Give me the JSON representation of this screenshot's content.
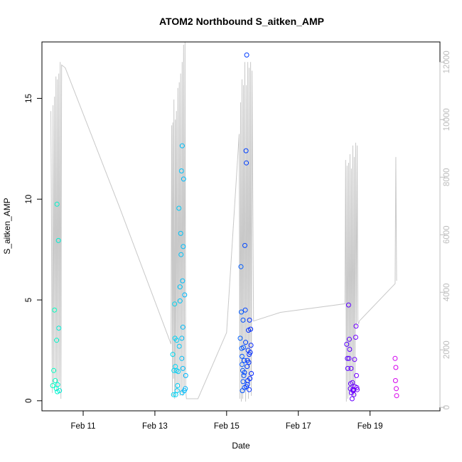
{
  "chart_data": {
    "type": "scatter",
    "title": "ATOM2 Northbound S_aitken_AMP",
    "xlabel": "Date",
    "ylabel": "S_aitken_AMP",
    "x_unit": "date",
    "xlim": [
      "Feb 9.85",
      "Feb 20.95"
    ],
    "ylim": [
      -0.5,
      17.8
    ],
    "y2lim": [
      -120,
      12700
    ],
    "x_ticks": [
      11,
      13,
      15,
      17,
      19
    ],
    "x_tick_labels": [
      "Feb 11",
      "Feb 13",
      "Feb 15",
      "Feb 17",
      "Feb 19"
    ],
    "y_ticks": [
      0,
      5,
      10,
      15
    ],
    "y_tick_labels": [
      "0",
      "5",
      "10",
      "15"
    ],
    "y2_ticks": [
      0,
      2000,
      4000,
      6000,
      8000,
      10000,
      12000
    ],
    "y2_tick_labels": [
      "0",
      "2000",
      "4000",
      "6000",
      "8000",
      "10000",
      "12000"
    ],
    "grid": false,
    "legend": "none",
    "colors": {
      "line": "#c8c8c8",
      "axis": "#000000",
      "right_axis": "#bdbdbd"
    },
    "series": [
      {
        "role": "points",
        "axis": "left",
        "points": [
          {
            "day": 10.15,
            "y": 0.75,
            "color": "#00ffc0"
          },
          {
            "day": 10.18,
            "y": 1.5,
            "color": "#00ffc0"
          },
          {
            "day": 10.2,
            "y": 4.5,
            "color": "#00ffc0"
          },
          {
            "day": 10.22,
            "y": 1.0,
            "color": "#00fcc4"
          },
          {
            "day": 10.25,
            "y": 0.6,
            "color": "#00f8c8"
          },
          {
            "day": 10.26,
            "y": 3.0,
            "color": "#00f6ca"
          },
          {
            "day": 10.27,
            "y": 9.75,
            "color": "#00f4cc"
          },
          {
            "day": 10.28,
            "y": 0.45,
            "color": "#00f2ce"
          },
          {
            "day": 10.29,
            "y": 0.8,
            "color": "#00f0d0"
          },
          {
            "day": 10.31,
            "y": 7.95,
            "color": "#00eed2"
          },
          {
            "day": 10.32,
            "y": 3.6,
            "color": "#00ecd4"
          },
          {
            "day": 10.34,
            "y": 0.5,
            "color": "#00ead6"
          },
          {
            "day": 13.5,
            "y": 2.3,
            "color": "#00d8ee"
          },
          {
            "day": 13.52,
            "y": 0.3,
            "color": "#00d6ef"
          },
          {
            "day": 13.53,
            "y": 1.5,
            "color": "#00d5f0"
          },
          {
            "day": 13.55,
            "y": 4.8,
            "color": "#00d4f0"
          },
          {
            "day": 13.56,
            "y": 3.1,
            "color": "#00d3f1"
          },
          {
            "day": 13.57,
            "y": 1.7,
            "color": "#00d2f2"
          },
          {
            "day": 13.58,
            "y": 0.3,
            "color": "#00d1f2"
          },
          {
            "day": 13.6,
            "y": 1.5,
            "color": "#00cff3"
          },
          {
            "day": 13.61,
            "y": 3.0,
            "color": "#00cef3"
          },
          {
            "day": 13.62,
            "y": 0.5,
            "color": "#00cdf4"
          },
          {
            "day": 13.65,
            "y": 1.45,
            "color": "#00caf5"
          },
          {
            "day": 13.67,
            "y": 9.55,
            "color": "#00c8f6"
          },
          {
            "day": 13.68,
            "y": 2.7,
            "color": "#00c7f6"
          },
          {
            "day": 13.7,
            "y": 5.65,
            "color": "#00c5f7"
          },
          {
            "day": 13.72,
            "y": 8.3,
            "color": "#00c3f8"
          },
          {
            "day": 13.73,
            "y": 7.25,
            "color": "#00c2f8"
          },
          {
            "day": 13.74,
            "y": 11.4,
            "color": "#00c1f9"
          },
          {
            "day": 13.75,
            "y": 3.1,
            "color": "#00c0f9"
          },
          {
            "day": 13.76,
            "y": 12.65,
            "color": "#00bff9"
          },
          {
            "day": 13.77,
            "y": 5.95,
            "color": "#00befa"
          },
          {
            "day": 13.78,
            "y": 3.65,
            "color": "#00bdfa"
          },
          {
            "day": 13.79,
            "y": 7.65,
            "color": "#00bcfa"
          },
          {
            "day": 13.8,
            "y": 11.0,
            "color": "#00bbfb"
          },
          {
            "day": 13.82,
            "y": 0.5,
            "color": "#00b9fb"
          },
          {
            "day": 13.83,
            "y": 5.25,
            "color": "#00b8fc"
          },
          {
            "day": 13.85,
            "y": 0.6,
            "color": "#00b6fc"
          },
          {
            "day": 13.86,
            "y": 1.25,
            "color": "#00b5fc"
          },
          {
            "day": 13.75,
            "y": 2.1,
            "color": "#00c0f9"
          },
          {
            "day": 13.7,
            "y": 4.95,
            "color": "#00c5f7"
          },
          {
            "day": 13.63,
            "y": 0.75,
            "color": "#00ccf4"
          },
          {
            "day": 13.78,
            "y": 1.6,
            "color": "#00bdfa"
          },
          {
            "day": 13.76,
            "y": 0.4,
            "color": "#00bff9"
          },
          {
            "day": 15.38,
            "y": 3.1,
            "color": "#0060ff"
          },
          {
            "day": 15.4,
            "y": 6.65,
            "color": "#005cff"
          },
          {
            "day": 15.41,
            "y": 4.4,
            "color": "#005aff"
          },
          {
            "day": 15.42,
            "y": 2.6,
            "color": "#0058ff"
          },
          {
            "day": 15.43,
            "y": 1.8,
            "color": "#0056ff"
          },
          {
            "day": 15.44,
            "y": 0.5,
            "color": "#0054ff"
          },
          {
            "day": 15.45,
            "y": 1.5,
            "color": "#0052ff"
          },
          {
            "day": 15.46,
            "y": 4.0,
            "color": "#0050ff"
          },
          {
            "day": 15.47,
            "y": 2.65,
            "color": "#004eff"
          },
          {
            "day": 15.48,
            "y": 1.25,
            "color": "#004cff"
          },
          {
            "day": 15.49,
            "y": 2.0,
            "color": "#004aff"
          },
          {
            "day": 15.5,
            "y": 0.65,
            "color": "#0048ff"
          },
          {
            "day": 15.51,
            "y": 7.7,
            "color": "#0046ff"
          },
          {
            "day": 15.52,
            "y": 4.5,
            "color": "#0044ff"
          },
          {
            "day": 15.53,
            "y": 2.9,
            "color": "#0042ff"
          },
          {
            "day": 15.54,
            "y": 12.4,
            "color": "#0040ff"
          },
          {
            "day": 15.55,
            "y": 11.8,
            "color": "#003eff"
          },
          {
            "day": 15.56,
            "y": 17.15,
            "color": "#003cff"
          },
          {
            "day": 15.57,
            "y": 1.7,
            "color": "#003aff"
          },
          {
            "day": 15.58,
            "y": 0.8,
            "color": "#0038ff"
          },
          {
            "day": 15.59,
            "y": 1.0,
            "color": "#0036ff"
          },
          {
            "day": 15.6,
            "y": 2.5,
            "color": "#0034ff"
          },
          {
            "day": 15.61,
            "y": 3.5,
            "color": "#0032ff"
          },
          {
            "day": 15.62,
            "y": 1.9,
            "color": "#0030ff"
          },
          {
            "day": 15.63,
            "y": 2.3,
            "color": "#002eff"
          },
          {
            "day": 15.64,
            "y": 4.0,
            "color": "#002cff"
          },
          {
            "day": 15.65,
            "y": 1.1,
            "color": "#002aff"
          },
          {
            "day": 15.66,
            "y": 2.4,
            "color": "#0028ff"
          },
          {
            "day": 15.67,
            "y": 3.55,
            "color": "#0026ff"
          },
          {
            "day": 15.68,
            "y": 2.75,
            "color": "#0024ff"
          },
          {
            "day": 15.69,
            "y": 1.35,
            "color": "#0022ff"
          },
          {
            "day": 15.58,
            "y": 2.0,
            "color": "#0038ff"
          },
          {
            "day": 15.5,
            "y": 1.4,
            "color": "#0048ff"
          },
          {
            "day": 15.46,
            "y": 0.95,
            "color": "#0050ff"
          },
          {
            "day": 15.43,
            "y": 2.2,
            "color": "#0056ff"
          },
          {
            "day": 15.55,
            "y": 0.7,
            "color": "#003eff"
          },
          {
            "day": 15.63,
            "y": 0.55,
            "color": "#002eff"
          },
          {
            "day": 18.35,
            "y": 2.8,
            "color": "#5800ff"
          },
          {
            "day": 18.37,
            "y": 2.1,
            "color": "#5a00ff"
          },
          {
            "day": 18.38,
            "y": 1.6,
            "color": "#5b00ff"
          },
          {
            "day": 18.4,
            "y": 4.75,
            "color": "#5d00ff"
          },
          {
            "day": 18.41,
            "y": 2.1,
            "color": "#5e00ff"
          },
          {
            "day": 18.42,
            "y": 3.05,
            "color": "#5f00ff"
          },
          {
            "day": 18.43,
            "y": 2.55,
            "color": "#6000ff"
          },
          {
            "day": 18.45,
            "y": 0.6,
            "color": "#6200ff"
          },
          {
            "day": 18.46,
            "y": 0.85,
            "color": "#6300ff"
          },
          {
            "day": 18.47,
            "y": 1.6,
            "color": "#6400ff"
          },
          {
            "day": 18.48,
            "y": 0.4,
            "color": "#6500ff"
          },
          {
            "day": 18.5,
            "y": 0.1,
            "color": "#6700ff"
          },
          {
            "day": 18.51,
            "y": 0.9,
            "color": "#6800ff"
          },
          {
            "day": 18.52,
            "y": 0.55,
            "color": "#6900ff"
          },
          {
            "day": 18.53,
            "y": 0.5,
            "color": "#6a00ff"
          },
          {
            "day": 18.55,
            "y": 0.3,
            "color": "#6c00ff"
          },
          {
            "day": 18.57,
            "y": 2.05,
            "color": "#6e00ff"
          },
          {
            "day": 18.58,
            "y": 0.7,
            "color": "#6f00ff"
          },
          {
            "day": 18.6,
            "y": 3.15,
            "color": "#7100ff"
          },
          {
            "day": 18.61,
            "y": 3.7,
            "color": "#7200ff"
          },
          {
            "day": 18.62,
            "y": 1.25,
            "color": "#7300ff"
          },
          {
            "day": 18.63,
            "y": 0.65,
            "color": "#7400ff"
          },
          {
            "day": 18.64,
            "y": 0.55,
            "color": "#7500ff"
          },
          {
            "day": 18.55,
            "y": 0.55,
            "color": "#6c00ff"
          },
          {
            "day": 19.7,
            "y": 2.1,
            "color": "#d000f0"
          },
          {
            "day": 19.71,
            "y": 1.0,
            "color": "#d200ee"
          },
          {
            "day": 19.72,
            "y": 1.65,
            "color": "#d400ec"
          },
          {
            "day": 19.73,
            "y": 0.6,
            "color": "#d600ea"
          },
          {
            "day": 19.74,
            "y": 0.25,
            "color": "#d800e8"
          }
        ]
      },
      {
        "role": "trace",
        "axis": "right",
        "note": "grey high-frequency trace (sample count)",
        "line_x": [
          10.1,
          10.14,
          10.16,
          10.18,
          10.2,
          10.22,
          10.24,
          10.26,
          10.28,
          10.3,
          10.32,
          10.34,
          10.36,
          10.38,
          10.4,
          10.5,
          12.0,
          13.45,
          13.47,
          13.49,
          13.5,
          13.52,
          13.53,
          13.55,
          13.57,
          13.58,
          13.6,
          13.62,
          13.64,
          13.66,
          13.68,
          13.7,
          13.72,
          13.74,
          13.76,
          13.78,
          13.8,
          13.82,
          13.84,
          13.86,
          13.88,
          14.2,
          15.0,
          15.35,
          15.37,
          15.39,
          15.41,
          15.43,
          15.45,
          15.47,
          15.49,
          15.51,
          15.53,
          15.55,
          15.57,
          15.59,
          15.61,
          15.63,
          15.65,
          15.67,
          15.69,
          15.71,
          15.75,
          16.5,
          18.3,
          18.32,
          18.34,
          18.36,
          18.38,
          18.4,
          18.42,
          18.44,
          18.46,
          18.48,
          18.5,
          18.52,
          18.54,
          18.56,
          18.58,
          18.6,
          18.62,
          18.64,
          18.66,
          18.68,
          18.7,
          19.7,
          19.72,
          19.74
        ],
        "line_y": [
          10300,
          500,
          10500,
          800,
          10800,
          1000,
          11500,
          600,
          11400,
          700,
          11600,
          900,
          12000,
          300,
          11900,
          11800,
          7000,
          2200,
          9800,
          400,
          9900,
          1000,
          10700,
          300,
          10000,
          600,
          10300,
          500,
          11100,
          800,
          11300,
          400,
          11600,
          500,
          12000,
          400,
          12600,
          700,
          12700,
          600,
          300,
          300,
          2600,
          9500,
          300,
          10600,
          200,
          11400,
          300,
          11200,
          500,
          12000,
          200,
          11200,
          600,
          12000,
          300,
          11800,
          800,
          12000,
          400,
          11700,
          3000,
          3300,
          3600,
          8600,
          200,
          8400,
          300,
          8500,
          400,
          8800,
          500,
          8300,
          700,
          9100,
          300,
          8700,
          400,
          9200,
          2800,
          9100,
          3000,
          2900,
          3000,
          4300,
          8700,
          4400
        ]
      }
    ]
  }
}
